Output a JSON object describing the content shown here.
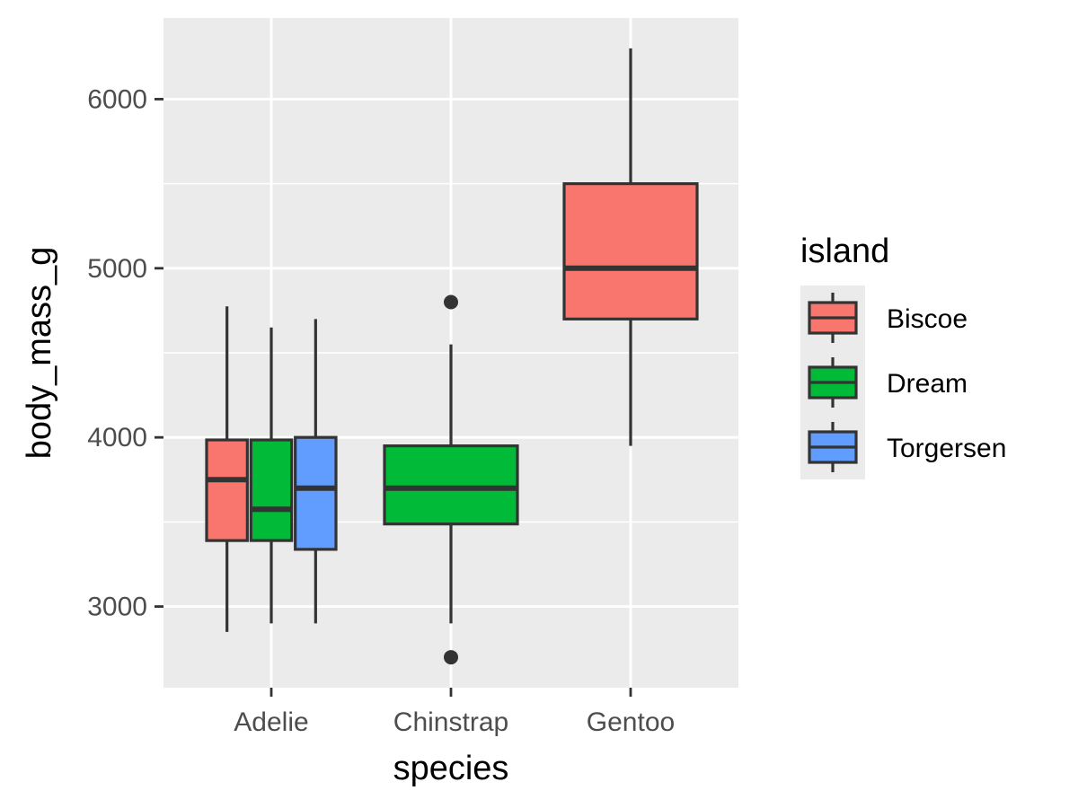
{
  "chart_data": {
    "type": "box",
    "xlabel": "species",
    "ylabel": "body_mass_g",
    "categories": [
      "Adelie",
      "Chinstrap",
      "Gentoo"
    ],
    "ylim": [
      2520,
      6480
    ],
    "yticks": [
      3000,
      4000,
      5000,
      6000
    ],
    "yticks_labels": [
      "3000",
      "4000",
      "5000",
      "6000"
    ],
    "grid": true,
    "legend": {
      "title": "island",
      "placement": "right",
      "entries": [
        {
          "name": "Biscoe",
          "color": "#F8766D"
        },
        {
          "name": "Dream",
          "color": "#00BA38"
        },
        {
          "name": "Torgersen",
          "color": "#619CFF"
        }
      ]
    },
    "boxes": [
      {
        "category": "Adelie",
        "island": "Biscoe",
        "min": 2850,
        "q1": 3390,
        "median": 3750,
        "q3": 3985,
        "max": 4775,
        "outliers": []
      },
      {
        "category": "Adelie",
        "island": "Dream",
        "min": 2900,
        "q1": 3390,
        "median": 3575,
        "q3": 3985,
        "max": 4650,
        "outliers": []
      },
      {
        "category": "Adelie",
        "island": "Torgersen",
        "min": 2900,
        "q1": 3338,
        "median": 3700,
        "q3": 4000,
        "max": 4700,
        "outliers": []
      },
      {
        "category": "Chinstrap",
        "island": "Dream",
        "min": 2900,
        "q1": 3488,
        "median": 3700,
        "q3": 3950,
        "max": 4550,
        "outliers": [
          4800,
          2700
        ]
      },
      {
        "category": "Gentoo",
        "island": "Biscoe",
        "min": 3950,
        "q1": 4700,
        "median": 5000,
        "q3": 5500,
        "max": 6300,
        "outliers": []
      }
    ]
  }
}
